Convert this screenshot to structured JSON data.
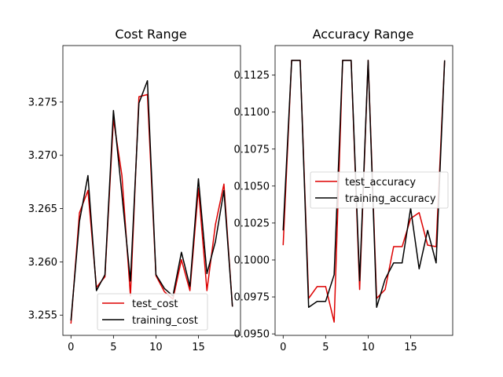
{
  "chart_data": [
    {
      "type": "line",
      "title": "Cost Range",
      "xlabel": "",
      "ylabel": "",
      "x": [
        0,
        1,
        2,
        3,
        4,
        5,
        6,
        7,
        8,
        9,
        10,
        11,
        12,
        13,
        14,
        15,
        16,
        17,
        18,
        19
      ],
      "xlim": [
        -0.95,
        19.95
      ],
      "ylim": [
        3.2531,
        3.2803
      ],
      "xticks": [
        0,
        5,
        10,
        15
      ],
      "yticks": [
        3.255,
        3.26,
        3.265,
        3.27,
        3.275
      ],
      "ytick_labels": [
        "3.255",
        "3.260",
        "3.265",
        "3.270",
        "3.275"
      ],
      "legend_position": "lower-center",
      "series": [
        {
          "name": "test_cost",
          "color": "#dd0000",
          "values": [
            3.2542,
            3.2646,
            3.2667,
            3.2576,
            3.2586,
            3.2734,
            3.2681,
            3.2568,
            3.2755,
            3.2757,
            3.2587,
            3.2572,
            3.2565,
            3.2602,
            3.2573,
            3.2669,
            3.2573,
            3.2635,
            3.2673,
            3.2558
          ]
        },
        {
          "name": "training_cost",
          "color": "#000000",
          "values": [
            3.2545,
            3.2638,
            3.2681,
            3.2573,
            3.2588,
            3.2742,
            3.2663,
            3.2582,
            3.2749,
            3.277,
            3.2588,
            3.2575,
            3.2568,
            3.2609,
            3.2577,
            3.2678,
            3.2589,
            3.2619,
            3.2667,
            3.2558
          ]
        }
      ]
    },
    {
      "type": "line",
      "title": "Accuracy Range",
      "xlabel": "",
      "ylabel": "",
      "x": [
        0,
        1,
        2,
        3,
        4,
        5,
        6,
        7,
        8,
        9,
        10,
        11,
        12,
        13,
        14,
        15,
        16,
        17,
        18,
        19
      ],
      "xlim": [
        -0.95,
        19.95
      ],
      "ylim": [
        0.0949,
        0.1145
      ],
      "xticks": [
        0,
        5,
        10,
        15
      ],
      "yticks": [
        0.095,
        0.0975,
        0.1,
        0.1025,
        0.105,
        0.1075,
        0.11,
        0.1125
      ],
      "ytick_labels": [
        "0.0950",
        "0.0975",
        "0.1000",
        "0.1025",
        "0.1050",
        "0.1075",
        "0.1100",
        "0.1125"
      ],
      "legend_position": "center-right",
      "series": [
        {
          "name": "test_accuracy",
          "color": "#dd0000",
          "values": [
            0.101,
            0.1135,
            0.1135,
            0.0974,
            0.0982,
            0.0982,
            0.0958,
            0.1135,
            0.1135,
            0.098,
            0.1135,
            0.0974,
            0.098,
            0.1009,
            0.1009,
            0.1028,
            0.1032,
            0.101,
            0.1009,
            0.1135
          ]
        },
        {
          "name": "training_accuracy",
          "color": "#000000",
          "values": [
            0.102,
            0.1135,
            0.1135,
            0.0968,
            0.0972,
            0.0972,
            0.099,
            0.1135,
            0.1135,
            0.0986,
            0.1135,
            0.0968,
            0.0987,
            0.0998,
            0.0998,
            0.1035,
            0.0994,
            0.102,
            0.0998,
            0.1135
          ]
        }
      ]
    }
  ]
}
